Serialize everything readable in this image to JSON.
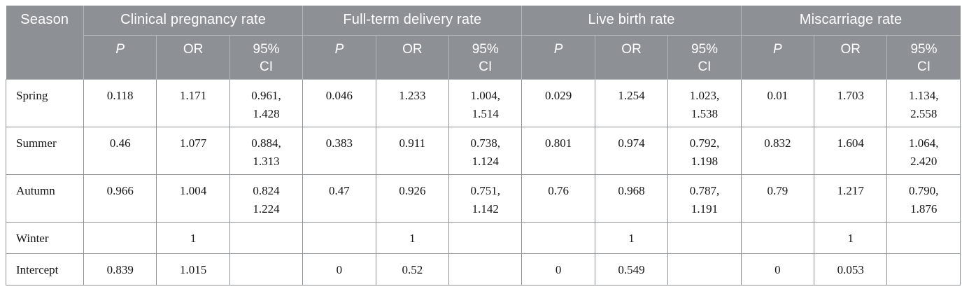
{
  "colors": {
    "header_bg": "#8d9196",
    "header_line": "#b3b7ba",
    "header_text": "#ffffff",
    "grid": "#909396",
    "body_text": "#151515"
  },
  "table": {
    "season_header": "Season",
    "groups": [
      {
        "label": "Clinical pregnancy rate"
      },
      {
        "label": "Full-term delivery rate"
      },
      {
        "label": "Live birth rate"
      },
      {
        "label": "Miscarriage rate"
      }
    ],
    "subcolumns": [
      "P",
      "OR",
      "95%\nCI"
    ],
    "rows": [
      {
        "season": "Spring",
        "cells": [
          "0.118",
          "1.171",
          "0.961,\n1.428",
          "0.046",
          "1.233",
          "1.004,\n1.514",
          "0.029",
          "1.254",
          "1.023,\n1.538",
          "0.01",
          "1.703",
          "1.134,\n2.558"
        ]
      },
      {
        "season": "Summer",
        "cells": [
          "0.46",
          "1.077",
          "0.884,\n1.313",
          "0.383",
          "0.911",
          "0.738,\n1.124",
          "0.801",
          "0.974",
          "0.792,\n1.198",
          "0.832",
          "1.604",
          "1.064,\n2.420"
        ]
      },
      {
        "season": "Autumn",
        "cells": [
          "0.966",
          "1.004",
          "0.824\n1.224",
          "0.47",
          "0.926",
          "0.751,\n1.142",
          "0.76",
          "0.968",
          "0.787,\n1.191",
          "0.79",
          "1.217",
          "0.790,\n1.876"
        ]
      },
      {
        "season": "Winter",
        "cells": [
          "",
          "1",
          "",
          "",
          "1",
          "",
          "",
          "1",
          "",
          "",
          "1",
          ""
        ]
      },
      {
        "season": "Intercept",
        "cells": [
          "0.839",
          "1.015",
          "",
          "0",
          "0.52",
          "",
          "0",
          "0.549",
          "",
          "0",
          "0.053",
          ""
        ]
      }
    ]
  }
}
